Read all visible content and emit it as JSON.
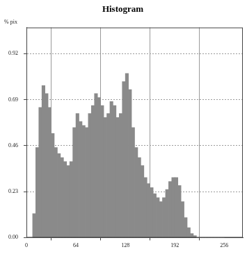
{
  "chart_data": {
    "type": "histogram",
    "title": "Histogram",
    "y_label": "% pix",
    "bins": [
      0,
      4,
      8,
      12,
      16,
      20,
      24,
      28,
      32,
      36,
      40,
      44,
      48,
      52,
      56,
      60,
      64,
      68,
      72,
      76,
      80,
      84,
      88,
      92,
      96,
      100,
      104,
      108,
      112,
      116,
      120,
      124,
      128,
      132,
      136,
      140,
      144,
      148,
      152,
      156,
      160,
      164,
      168,
      172,
      176,
      180,
      184,
      188,
      192,
      196,
      200,
      204,
      208,
      212,
      216,
      220,
      224,
      228,
      232,
      236,
      240,
      244,
      248,
      252,
      256
    ],
    "values": [
      0,
      0,
      0.12,
      0.45,
      0.65,
      0.76,
      0.72,
      0.65,
      0.52,
      0.45,
      0.42,
      0.4,
      0.38,
      0.36,
      0.38,
      0.55,
      0.62,
      0.58,
      0.56,
      0.55,
      0.62,
      0.66,
      0.72,
      0.7,
      0.66,
      0.6,
      0.62,
      0.68,
      0.66,
      0.6,
      0.62,
      0.78,
      0.82,
      0.74,
      0.55,
      0.45,
      0.4,
      0.36,
      0.3,
      0.27,
      0.25,
      0.22,
      0.2,
      0.18,
      0.2,
      0.24,
      0.28,
      0.3,
      0.3,
      0.26,
      0.18,
      0.1,
      0.05,
      0.02,
      0.01,
      0,
      0,
      0,
      0,
      0,
      0,
      0,
      0,
      0
    ],
    "color": "#8a8a8a",
    "xlim": [
      0,
      280
    ],
    "xticks": [
      0,
      64,
      128,
      192,
      256
    ],
    "ylim": [
      0,
      1.05
    ],
    "yticks": [
      {
        "value": 0,
        "label": "0.00"
      },
      0.23,
      0.46,
      0.69,
      0.92
    ],
    "grid": true
  }
}
